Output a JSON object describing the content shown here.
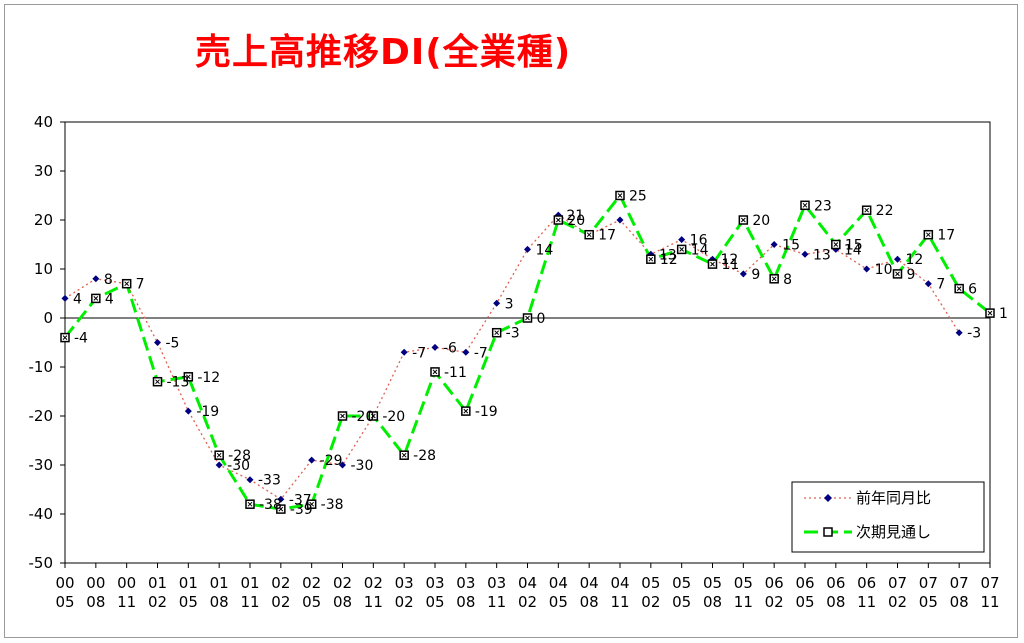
{
  "chart_data": {
    "type": "line",
    "title": "売上高推移DI(全業種)",
    "ylim": [
      -50,
      40
    ],
    "yticks": [
      40,
      30,
      20,
      10,
      0,
      -10,
      -20,
      -30,
      -40,
      -50
    ],
    "categories": [
      [
        "00",
        "05"
      ],
      [
        "00",
        "08"
      ],
      [
        "00",
        "11"
      ],
      [
        "01",
        "02"
      ],
      [
        "01",
        "05"
      ],
      [
        "01",
        "08"
      ],
      [
        "01",
        "11"
      ],
      [
        "02",
        "02"
      ],
      [
        "02",
        "05"
      ],
      [
        "02",
        "08"
      ],
      [
        "02",
        "11"
      ],
      [
        "03",
        "02"
      ],
      [
        "03",
        "05"
      ],
      [
        "03",
        "08"
      ],
      [
        "03",
        "11"
      ],
      [
        "04",
        "02"
      ],
      [
        "04",
        "05"
      ],
      [
        "04",
        "08"
      ],
      [
        "04",
        "11"
      ],
      [
        "05",
        "02"
      ],
      [
        "05",
        "05"
      ],
      [
        "05",
        "08"
      ],
      [
        "05",
        "11"
      ],
      [
        "06",
        "02"
      ],
      [
        "06",
        "05"
      ],
      [
        "06",
        "08"
      ],
      [
        "06",
        "11"
      ],
      [
        "07",
        "02"
      ],
      [
        "07",
        "05"
      ],
      [
        "07",
        "08"
      ],
      [
        "07",
        "11"
      ]
    ],
    "grid": false,
    "legend": "bottom-right",
    "series": [
      {
        "name": "前年同月比",
        "color": "#e06050",
        "marker_color": "#000080",
        "values": [
          4,
          8,
          7,
          -5,
          -19,
          -30,
          -33,
          -37,
          -29,
          -30,
          -20,
          -7,
          -6,
          -7,
          3,
          14,
          21,
          17,
          20,
          13,
          16,
          12,
          9,
          15,
          13,
          14,
          10,
          12,
          7,
          -3,
          null
        ]
      },
      {
        "name": "次期見通し",
        "color": "#00ee00",
        "values": [
          -4,
          4,
          7,
          -13,
          -12,
          -28,
          -38,
          -39,
          -38,
          -20,
          -20,
          -28,
          -11,
          -19,
          -3,
          0,
          20,
          17,
          25,
          12,
          14,
          11,
          20,
          8,
          23,
          15,
          22,
          9,
          17,
          6,
          1
        ]
      }
    ],
    "labels_series1": [
      {
        "i": 0,
        "t": "4"
      },
      {
        "i": 1,
        "t": "8"
      },
      {
        "i": 3,
        "t": "-5"
      },
      {
        "i": 4,
        "t": "-19"
      },
      {
        "i": 5,
        "t": "-30"
      },
      {
        "i": 6,
        "t": "-33"
      },
      {
        "i": 7,
        "t": "-37"
      },
      {
        "i": 8,
        "t": "-29"
      },
      {
        "i": 9,
        "t": "-30"
      },
      {
        "i": 11,
        "t": "-7"
      },
      {
        "i": 12,
        "t": "-6"
      },
      {
        "i": 13,
        "t": "-7"
      },
      {
        "i": 14,
        "t": "3"
      },
      {
        "i": 15,
        "t": "14"
      },
      {
        "i": 16,
        "t": "21"
      },
      {
        "i": 19,
        "t": "13"
      },
      {
        "i": 20,
        "t": "16"
      },
      {
        "i": 21,
        "t": "12"
      },
      {
        "i": 22,
        "t": "9"
      },
      {
        "i": 23,
        "t": "15"
      },
      {
        "i": 24,
        "t": "13"
      },
      {
        "i": 25,
        "t": "14"
      },
      {
        "i": 26,
        "t": "10"
      },
      {
        "i": 27,
        "t": "12"
      },
      {
        "i": 28,
        "t": "7"
      },
      {
        "i": 29,
        "t": "-3"
      }
    ],
    "labels_series2": [
      {
        "i": 0,
        "t": "-4"
      },
      {
        "i": 1,
        "t": "4"
      },
      {
        "i": 2,
        "t": "7"
      },
      {
        "i": 3,
        "t": "-13"
      },
      {
        "i": 4,
        "t": "-12"
      },
      {
        "i": 5,
        "t": "-28"
      },
      {
        "i": 6,
        "t": "-38"
      },
      {
        "i": 7,
        "t": "-39"
      },
      {
        "i": 8,
        "t": "-38"
      },
      {
        "i": 9,
        "t": "-20"
      },
      {
        "i": 10,
        "t": "-20"
      },
      {
        "i": 11,
        "t": "-28"
      },
      {
        "i": 12,
        "t": "-11"
      },
      {
        "i": 13,
        "t": "-19"
      },
      {
        "i": 14,
        "t": "-3"
      },
      {
        "i": 15,
        "t": "0"
      },
      {
        "i": 16,
        "t": "20"
      },
      {
        "i": 17,
        "t": "17"
      },
      {
        "i": 18,
        "t": "25"
      },
      {
        "i": 19,
        "t": "12"
      },
      {
        "i": 20,
        "t": "14"
      },
      {
        "i": 21,
        "t": "11"
      },
      {
        "i": 22,
        "t": "20"
      },
      {
        "i": 23,
        "t": "8"
      },
      {
        "i": 24,
        "t": "23"
      },
      {
        "i": 25,
        "t": "15"
      },
      {
        "i": 26,
        "t": "22"
      },
      {
        "i": 27,
        "t": "9"
      },
      {
        "i": 28,
        "t": "17"
      },
      {
        "i": 29,
        "t": "6"
      },
      {
        "i": 30,
        "t": "1"
      }
    ]
  }
}
